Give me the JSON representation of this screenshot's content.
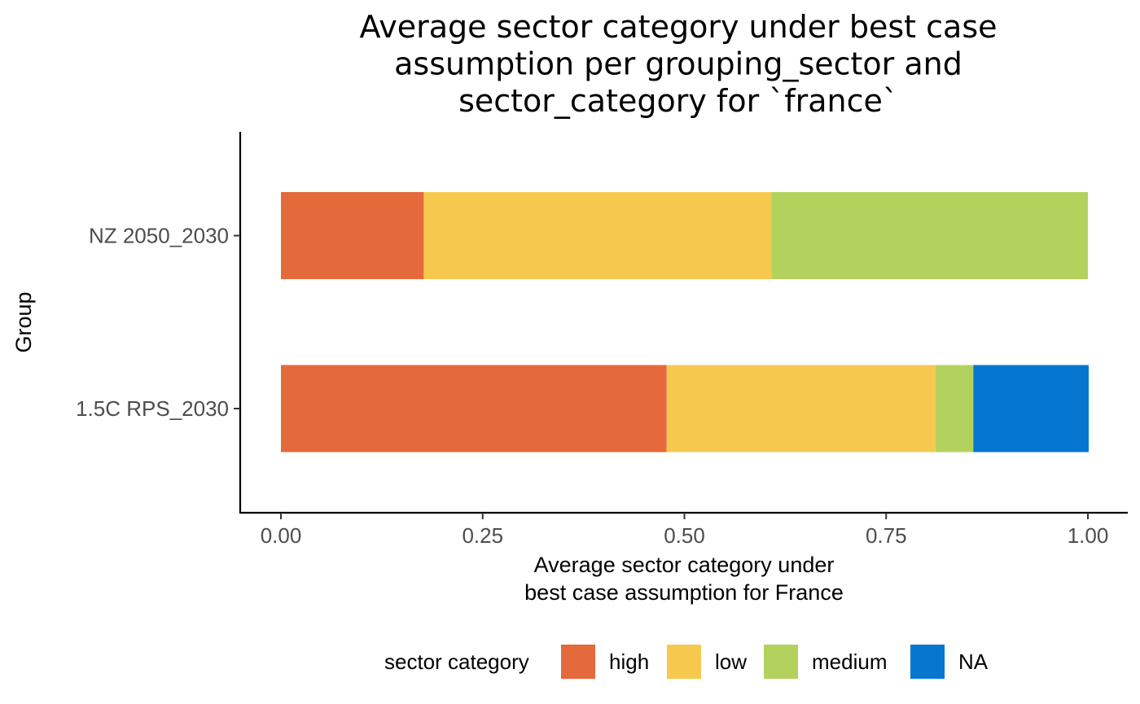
{
  "chart_data": {
    "type": "bar",
    "orientation": "horizontal",
    "stacked": true,
    "title_lines": [
      "Average sector category under best case",
      "assumption per grouping_sector and",
      "sector_category for `france`"
    ],
    "xlabel_lines": [
      "Average sector category under",
      "best case assumption for France"
    ],
    "ylabel": "Group",
    "categories": [
      "NZ 2050_2030",
      "1.5C RPS_2030"
    ],
    "xlim": [
      0,
      1
    ],
    "x_ticks": [
      0,
      0.25,
      0.5,
      0.75,
      1
    ],
    "x_tick_labels": [
      "0.00",
      "0.25",
      "0.50",
      "0.75",
      "1.00"
    ],
    "series": [
      {
        "name": "high",
        "color": "#e4693b",
        "values": [
          0.177,
          0.478
        ]
      },
      {
        "name": "low",
        "color": "#f6c94e",
        "values": [
          0.431,
          0.333
        ]
      },
      {
        "name": "medium",
        "color": "#b3d25d",
        "values": [
          0.392,
          0.047
        ]
      },
      {
        "name": "NA",
        "color": "#0677d1",
        "values": [
          0,
          0.143
        ]
      }
    ],
    "legend": {
      "title": "sector category",
      "position": "bottom"
    },
    "grid": false
  }
}
